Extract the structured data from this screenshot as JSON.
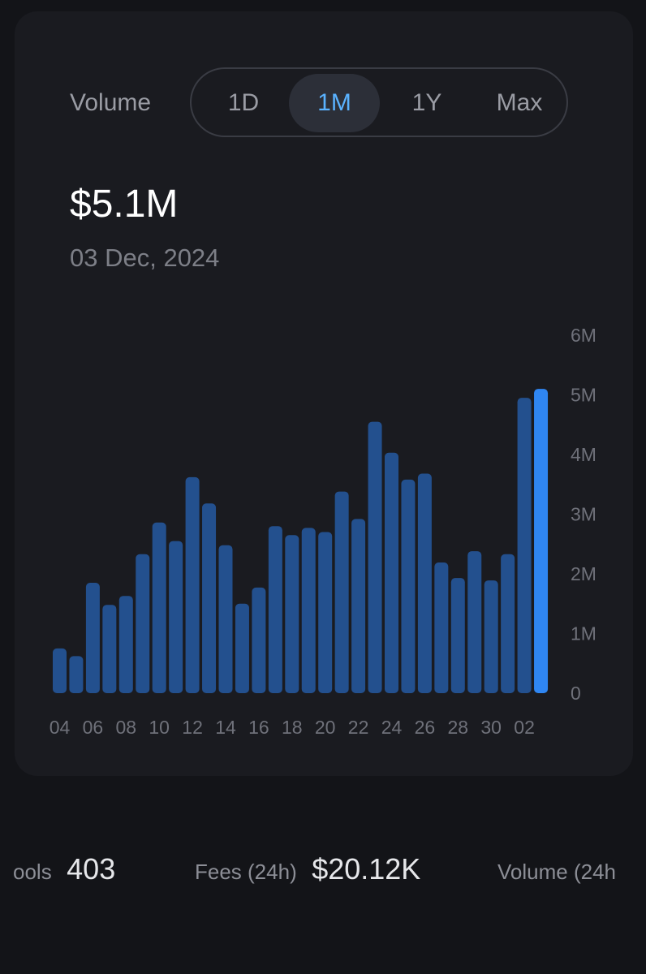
{
  "header": {
    "label": "Volume",
    "ranges": [
      "1D",
      "1M",
      "1Y",
      "Max"
    ],
    "active_range": "1M"
  },
  "summary": {
    "value": "$5.1M",
    "date": "03 Dec, 2024"
  },
  "stats": [
    {
      "label": "ools",
      "value": "403"
    },
    {
      "label": "Fees (24h)",
      "value": "$20.12K"
    },
    {
      "label": "Volume (24h",
      "value": ""
    }
  ],
  "colors": {
    "bar": "#23508e",
    "bar_highlight": "#2f86f2",
    "active_text": "#5ab2ff"
  },
  "chart_data": {
    "type": "bar",
    "title": "",
    "xlabel": "",
    "ylabel": "",
    "ylim": [
      0,
      6000000
    ],
    "y_ticks": [
      "0",
      "1M",
      "2M",
      "3M",
      "4M",
      "5M",
      "6M"
    ],
    "x_tick_labels": [
      "04",
      "06",
      "08",
      "10",
      "12",
      "14",
      "16",
      "18",
      "20",
      "22",
      "24",
      "26",
      "28",
      "30",
      "02"
    ],
    "categories": [
      "04",
      "05",
      "06",
      "07",
      "08",
      "09",
      "10",
      "11",
      "12",
      "13",
      "14",
      "15",
      "16",
      "17",
      "18",
      "19",
      "20",
      "21",
      "22",
      "23",
      "24",
      "25",
      "26",
      "27",
      "28",
      "29",
      "30",
      "01",
      "02",
      "03"
    ],
    "values": [
      750000,
      620000,
      1850000,
      1480000,
      1630000,
      2330000,
      2860000,
      2550000,
      3620000,
      3180000,
      2480000,
      1500000,
      1770000,
      2800000,
      2650000,
      2770000,
      2700000,
      3380000,
      2920000,
      4550000,
      4030000,
      3580000,
      3680000,
      2190000,
      1930000,
      2380000,
      1890000,
      2330000,
      4950000,
      5100000
    ],
    "highlight_index": 29,
    "grid": false
  }
}
